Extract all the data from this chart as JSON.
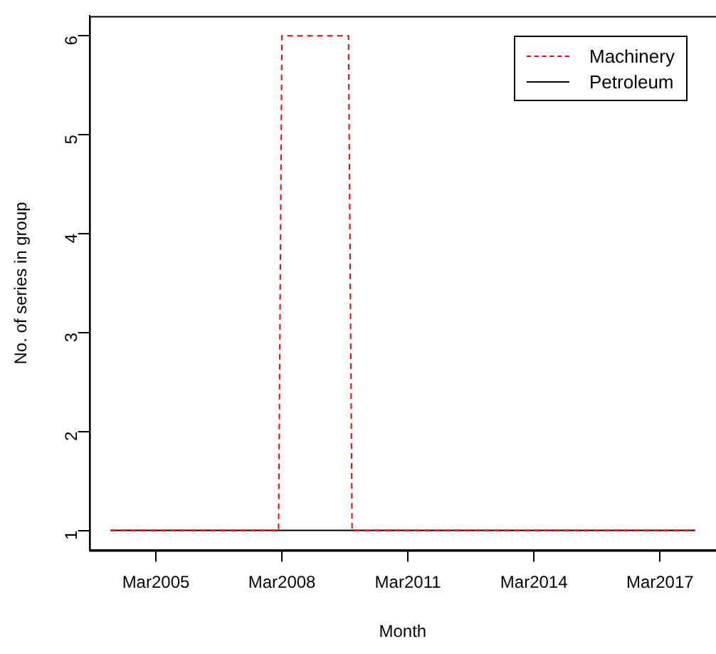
{
  "chart_data": {
    "type": "line",
    "xlabel": "Month",
    "ylabel": "No. of series in group",
    "xlim": [
      "2003-08",
      "2018-07"
    ],
    "xticks": [
      {
        "value": "2005-03",
        "label": "Mar2005"
      },
      {
        "value": "2008-03",
        "label": "Mar2008"
      },
      {
        "value": "2011-03",
        "label": "Mar2011"
      },
      {
        "value": "2014-03",
        "label": "Mar2014"
      },
      {
        "value": "2017-03",
        "label": "Mar2017"
      }
    ],
    "ylim": [
      0.8,
      6.2
    ],
    "yticks": [
      1,
      2,
      3,
      4,
      5,
      6
    ],
    "grid": false,
    "legend": "top right",
    "marker": "none",
    "series": [
      {
        "name": "Machinery",
        "color": "#ff0000",
        "line_style": "dashed",
        "x": [
          "2004-02",
          "2008-02",
          "2008-03",
          "2009-10",
          "2009-11",
          "2018-01"
        ],
        "values": [
          1,
          1,
          6,
          6,
          1,
          1
        ]
      },
      {
        "name": "Petroleum",
        "color": "#000000",
        "line_style": "solid",
        "x": [
          "2004-02",
          "2018-01"
        ],
        "values": [
          1,
          1
        ]
      }
    ]
  }
}
